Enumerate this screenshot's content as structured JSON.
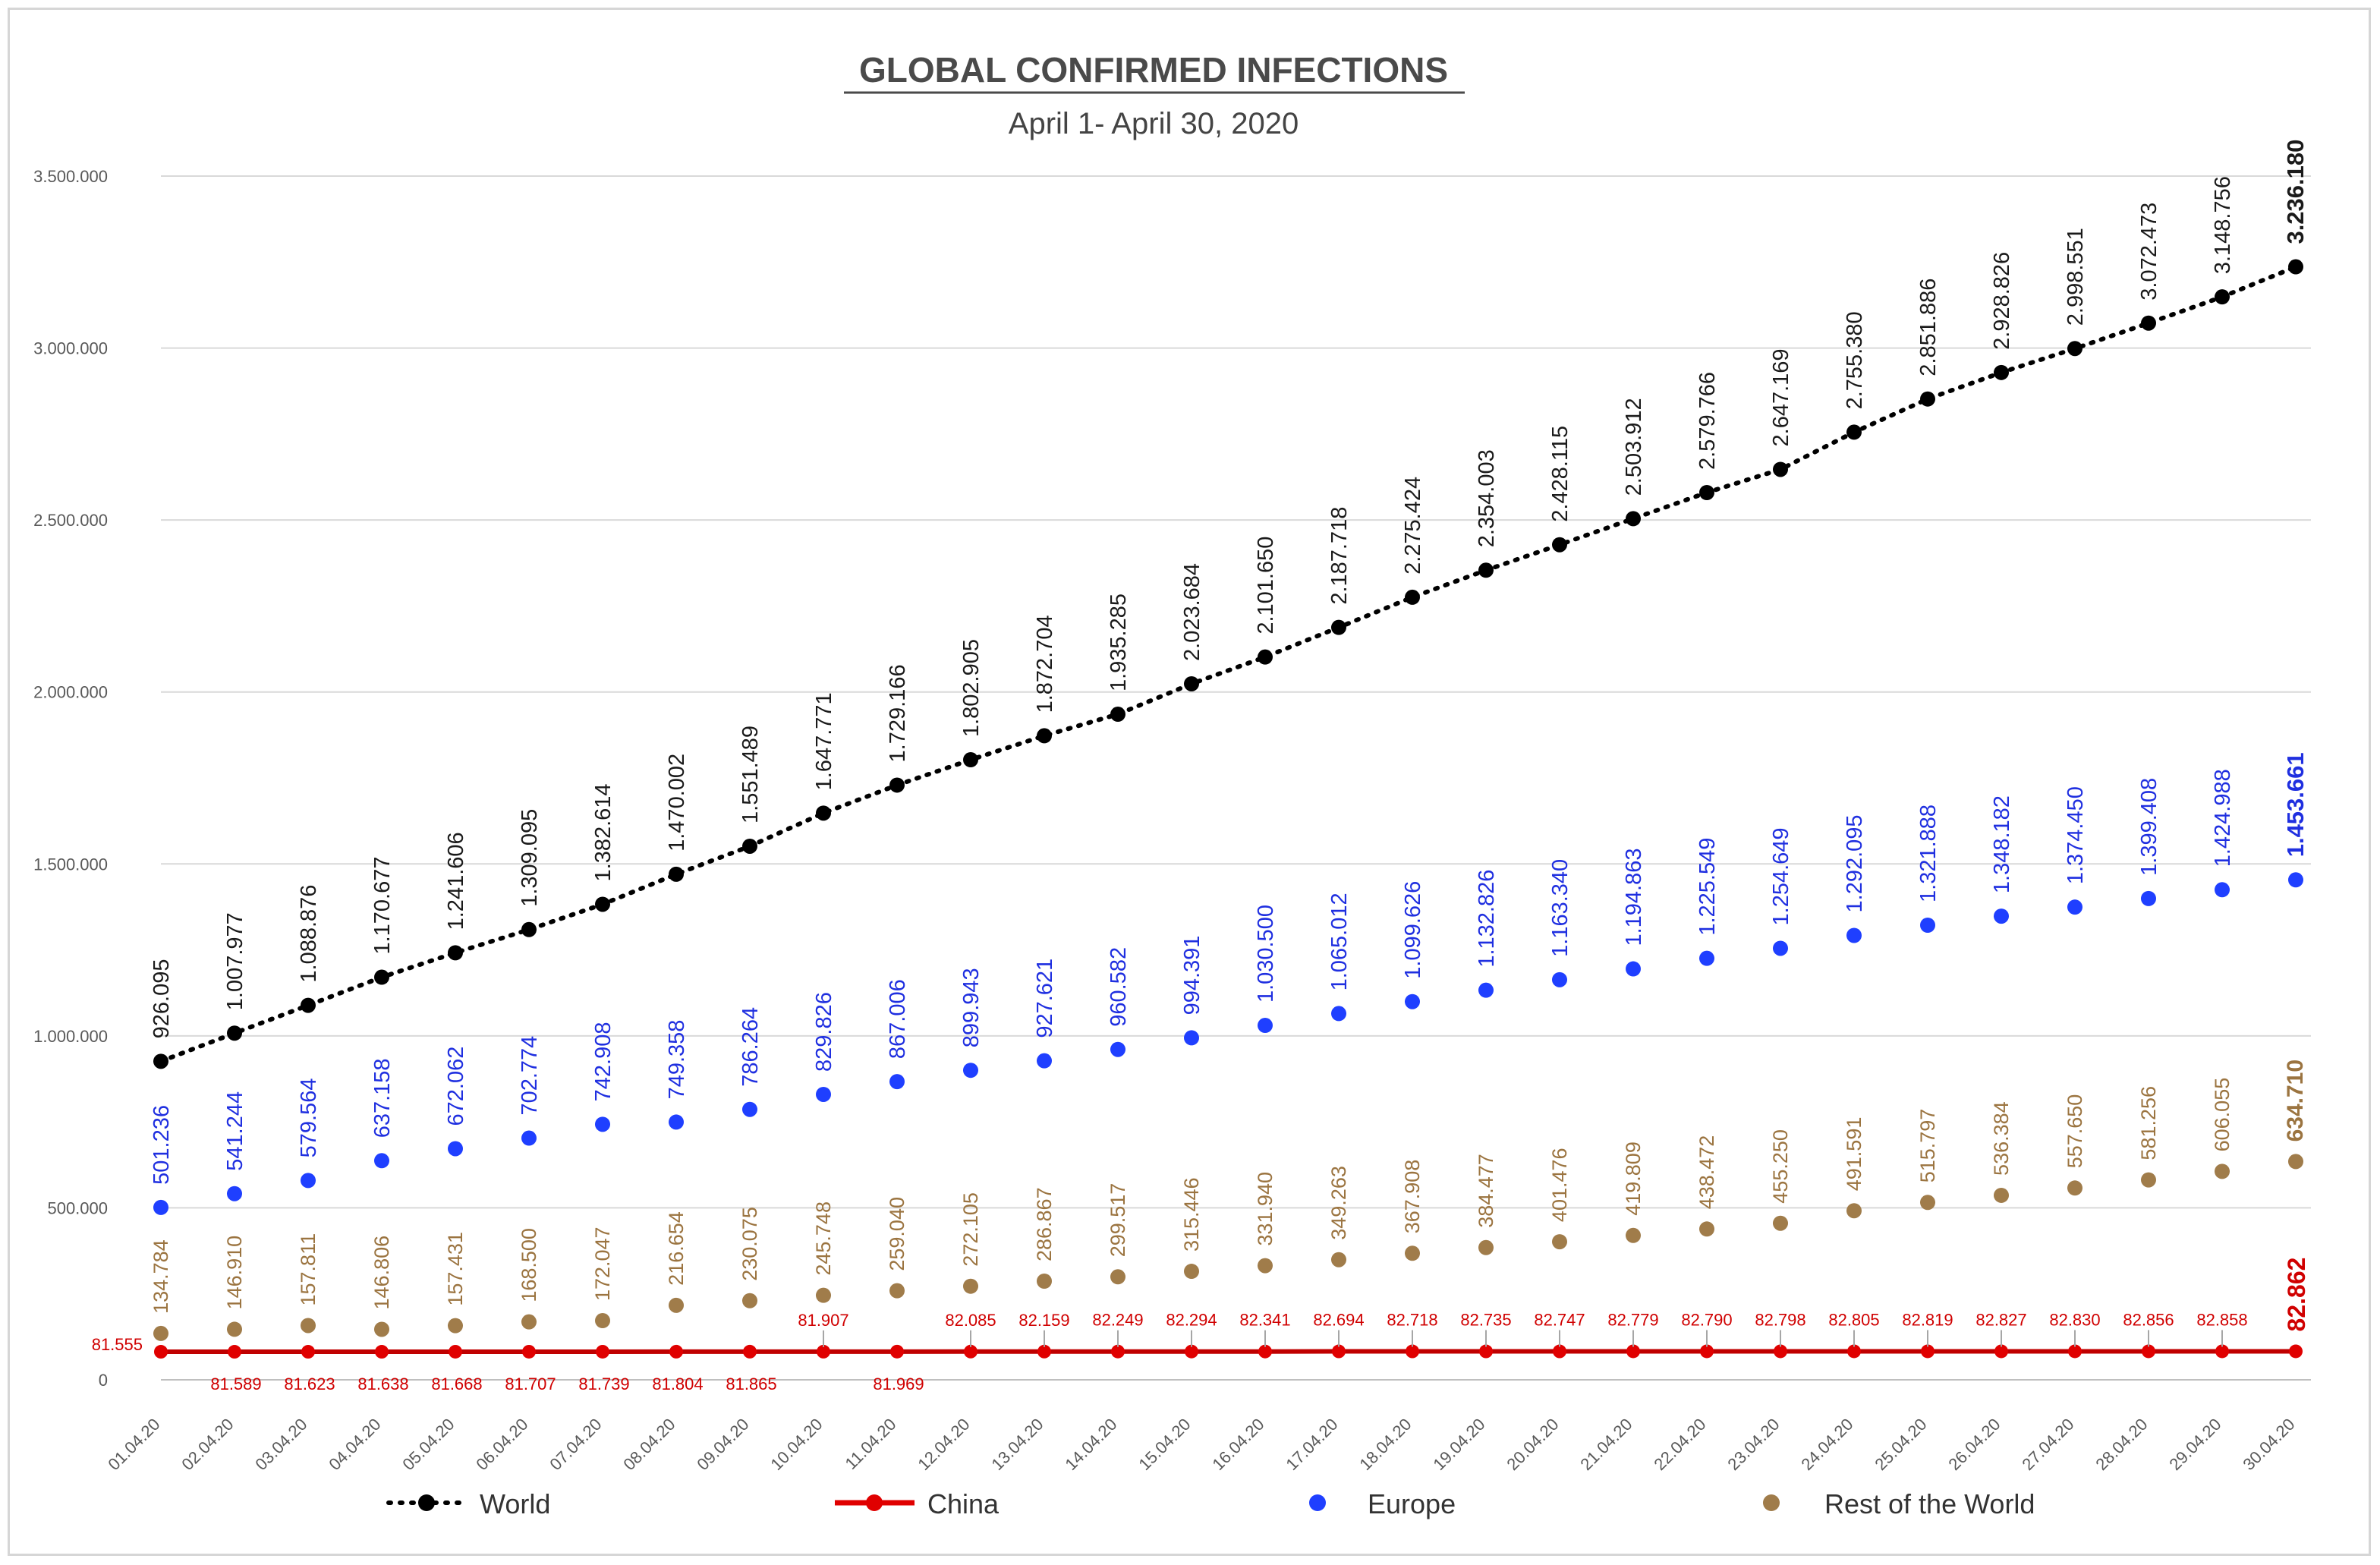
{
  "chart_data": {
    "type": "line",
    "title": "GLOBAL CONFIRMED INFECTIONS",
    "subtitle": "April 1- April 30, 2020",
    "xlabel": "",
    "ylabel": "",
    "ylim": [
      0,
      3500000
    ],
    "yticks": [
      0,
      500000,
      1000000,
      1500000,
      2000000,
      2500000,
      3000000,
      3500000
    ],
    "ytick_labels": [
      "0",
      "500.000",
      "1.000.000",
      "1.500.000",
      "2.000.000",
      "2.500.000",
      "3.000.000",
      "3.500.000"
    ],
    "grid": true,
    "legend_position": "bottom",
    "categories": [
      "01.04.20",
      "02.04.20",
      "03.04.20",
      "04.04.20",
      "05.04.20",
      "06.04.20",
      "07.04.20",
      "08.04.20",
      "09.04.20",
      "10.04.20",
      "11.04.20",
      "12.04.20",
      "13.04.20",
      "14.04.20",
      "15.04.20",
      "16.04.20",
      "17.04.20",
      "18.04.20",
      "19.04.20",
      "20.04.20",
      "21.04.20",
      "22.04.20",
      "23.04.20",
      "24.04.20",
      "25.04.20",
      "26.04.20",
      "27.04.20",
      "28.04.20",
      "29.04.20",
      "30.04.20"
    ],
    "series": [
      {
        "name": "World",
        "color": "#000000",
        "style": "dotted-line-markers",
        "values": [
          926095,
          1007977,
          1088876,
          1170677,
          1241606,
          1309095,
          1382614,
          1470002,
          1551489,
          1647771,
          1729166,
          1802905,
          1872704,
          1935285,
          2023684,
          2101650,
          2187718,
          2275424,
          2354003,
          2428115,
          2503912,
          2579766,
          2647169,
          2755380,
          2851886,
          2928826,
          2998551,
          3072473,
          3148756,
          3236180
        ],
        "labels": [
          "926.095",
          "1.007.977",
          "1.088.876",
          "1.170.677",
          "1.241.606",
          "1.309.095",
          "1.382.614",
          "1.470.002",
          "1.551.489",
          "1.647.771",
          "1.729.166",
          "1.802.905",
          "1.872.704",
          "1.935.285",
          "2.023.684",
          "2.101.650",
          "2.187.718",
          "2.275.424",
          "2.354.003",
          "2.428.115",
          "2.503.912",
          "2.579.766",
          "2.647.169",
          "2.755.380",
          "2.851.886",
          "2.928.826",
          "2.998.551",
          "3.072.473",
          "3.148.756",
          "3.236.180"
        ]
      },
      {
        "name": "China",
        "color": "#c00000",
        "style": "solid-line-markers",
        "values": [
          81555,
          81589,
          81623,
          81638,
          81668,
          81707,
          81739,
          81804,
          81865,
          81907,
          81969,
          82085,
          82159,
          82249,
          82294,
          82341,
          82694,
          82718,
          82735,
          82747,
          82779,
          82790,
          82798,
          82805,
          82819,
          82827,
          82830,
          82856,
          82858,
          82862
        ],
        "labels": [
          "81.555",
          "81.589",
          "81.623",
          "81.638",
          "81.668",
          "81.707",
          "81.739",
          "81.804",
          "81.865",
          "81.907",
          "81.969",
          "82.085",
          "82.159",
          "82.249",
          "82.294",
          "82.341",
          "82.694",
          "82.718",
          "82.735",
          "82.747",
          "82.779",
          "82.790",
          "82.798",
          "82.805",
          "82.819",
          "82.827",
          "82.830",
          "82.856",
          "82.858",
          "82.862"
        ]
      },
      {
        "name": "Europe",
        "color": "#1f3fff",
        "style": "markers",
        "values": [
          501236,
          541244,
          579564,
          637158,
          672062,
          702774,
          742908,
          749358,
          786264,
          829826,
          867006,
          899943,
          927621,
          960582,
          994391,
          1030500,
          1065012,
          1099626,
          1132826,
          1163340,
          1194863,
          1225549,
          1254649,
          1292095,
          1321888,
          1348182,
          1374450,
          1399408,
          1424988,
          1453661
        ],
        "labels": [
          "501.236",
          "541.244",
          "579.564",
          "637.158",
          "672.062",
          "702.774",
          "742.908",
          "749.358",
          "786.264",
          "829.826",
          "867.006",
          "899.943",
          "927.621",
          "960.582",
          "994.391",
          "1.030.500",
          "1.065.012",
          "1.099.626",
          "1.132.826",
          "1.163.340",
          "1.194.863",
          "1.225.549",
          "1.254.649",
          "1.292.095",
          "1.321.888",
          "1.348.182",
          "1.374.450",
          "1.399.408",
          "1.424.988",
          "1.453.661"
        ]
      },
      {
        "name": "Rest of the World",
        "color": "#a07c4a",
        "style": "markers",
        "values": [
          134784,
          146910,
          157811,
          146806,
          157431,
          168500,
          172047,
          216654,
          230075,
          245748,
          259040,
          272105,
          286867,
          299517,
          315446,
          331940,
          349263,
          367908,
          384477,
          401476,
          419809,
          438472,
          455250,
          491591,
          515797,
          536384,
          557650,
          581256,
          606055,
          634710
        ],
        "labels": [
          "134.784",
          "146.910",
          "157.811",
          "146.806",
          "157.431",
          "168.500",
          "172.047",
          "216.654",
          "230.075",
          "245.748",
          "259.040",
          "272.105",
          "286.867",
          "299.517",
          "315.446",
          "331.940",
          "349.263",
          "367.908",
          "384.477",
          "401.476",
          "419.809",
          "438.472",
          "455.250",
          "491.591",
          "515.797",
          "536.384",
          "557.650",
          "581.256",
          "606.055",
          "634.710"
        ]
      }
    ]
  },
  "legend": {
    "world": "World",
    "china": "China",
    "europe": "Europe",
    "rest": "Rest of the World"
  }
}
